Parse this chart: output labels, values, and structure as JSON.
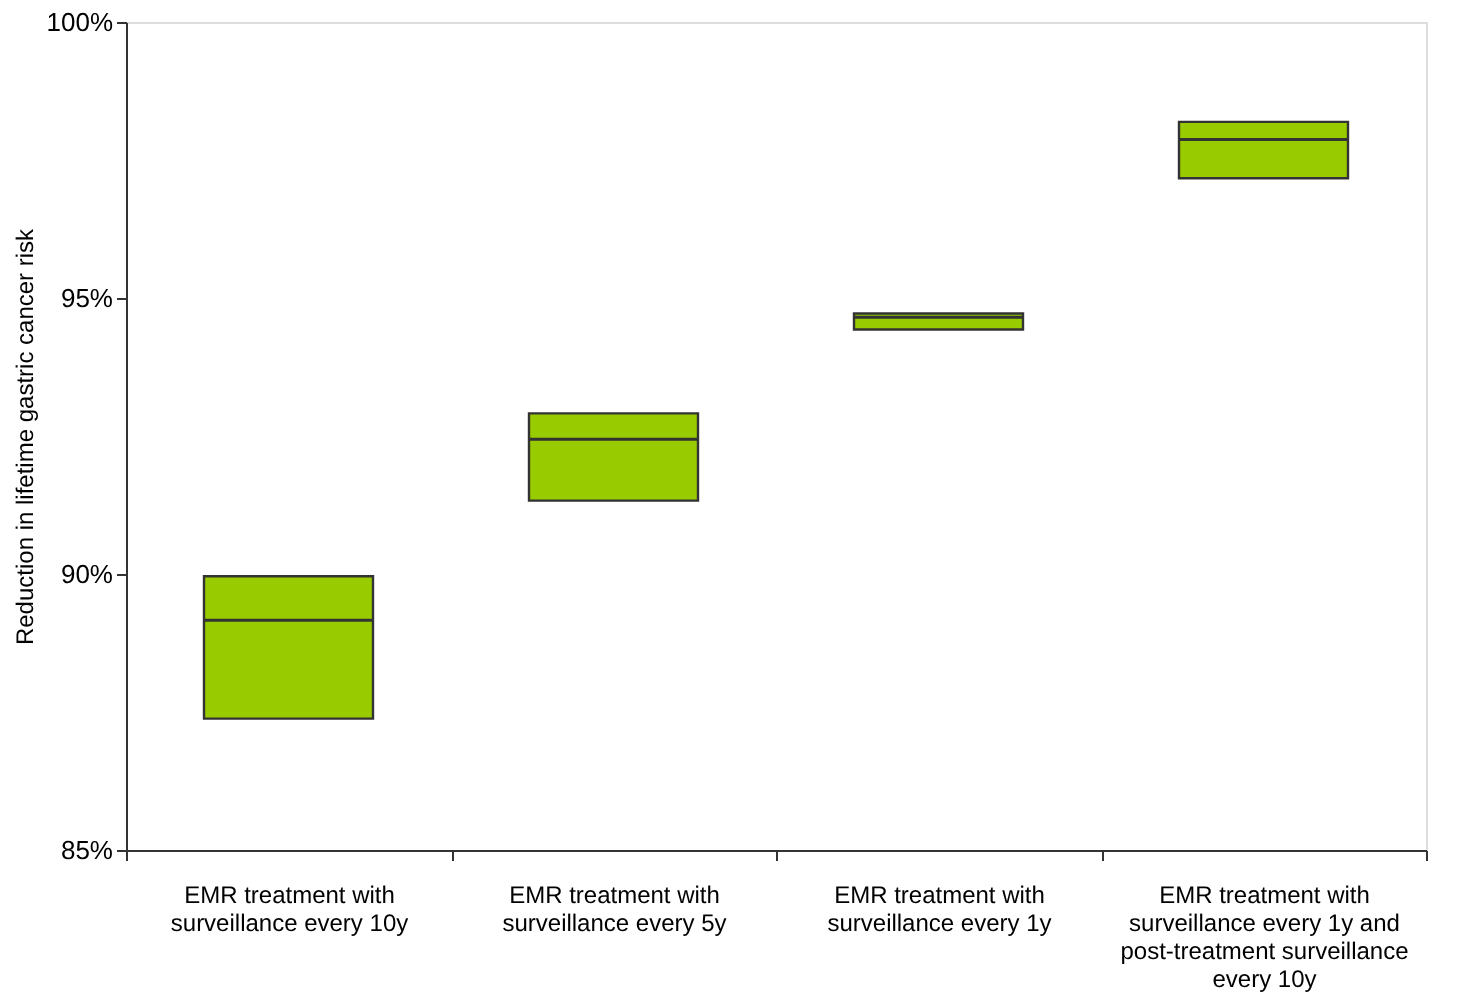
{
  "chart_data": {
    "type": "box",
    "ylabel": "Reduction in lifetime gastric cancer risk",
    "categories": [
      "EMR treatment with surveillance every 10y",
      "EMR treatment with surveillance every 5y",
      "EMR treatment with surveillance every 1y",
      "EMR treatment with surveillance every 1y and post-treatment surveillance every 10y"
    ],
    "boxes": [
      {
        "low": 87.38,
        "q1": 87.38,
        "median": 89.16,
        "q3": 89.96,
        "high": 89.96
      },
      {
        "low": 91.33,
        "q1": 91.33,
        "median": 92.44,
        "q3": 92.91,
        "high": 92.91
      },
      {
        "low": 94.43,
        "q1": 94.43,
        "median": 94.65,
        "q3": 94.72,
        "high": 94.72
      },
      {
        "low": 97.17,
        "q1": 97.17,
        "median": 97.87,
        "q3": 98.19,
        "high": 98.19
      }
    ],
    "color": "#99cc00",
    "ylim": [
      85,
      100
    ],
    "yticks": [
      {
        "value": 85,
        "label": "85%"
      },
      {
        "value": 90,
        "label": "90%"
      },
      {
        "value": 95,
        "label": "95%"
      },
      {
        "value": 100,
        "label": "100%"
      }
    ],
    "grid": false
  }
}
